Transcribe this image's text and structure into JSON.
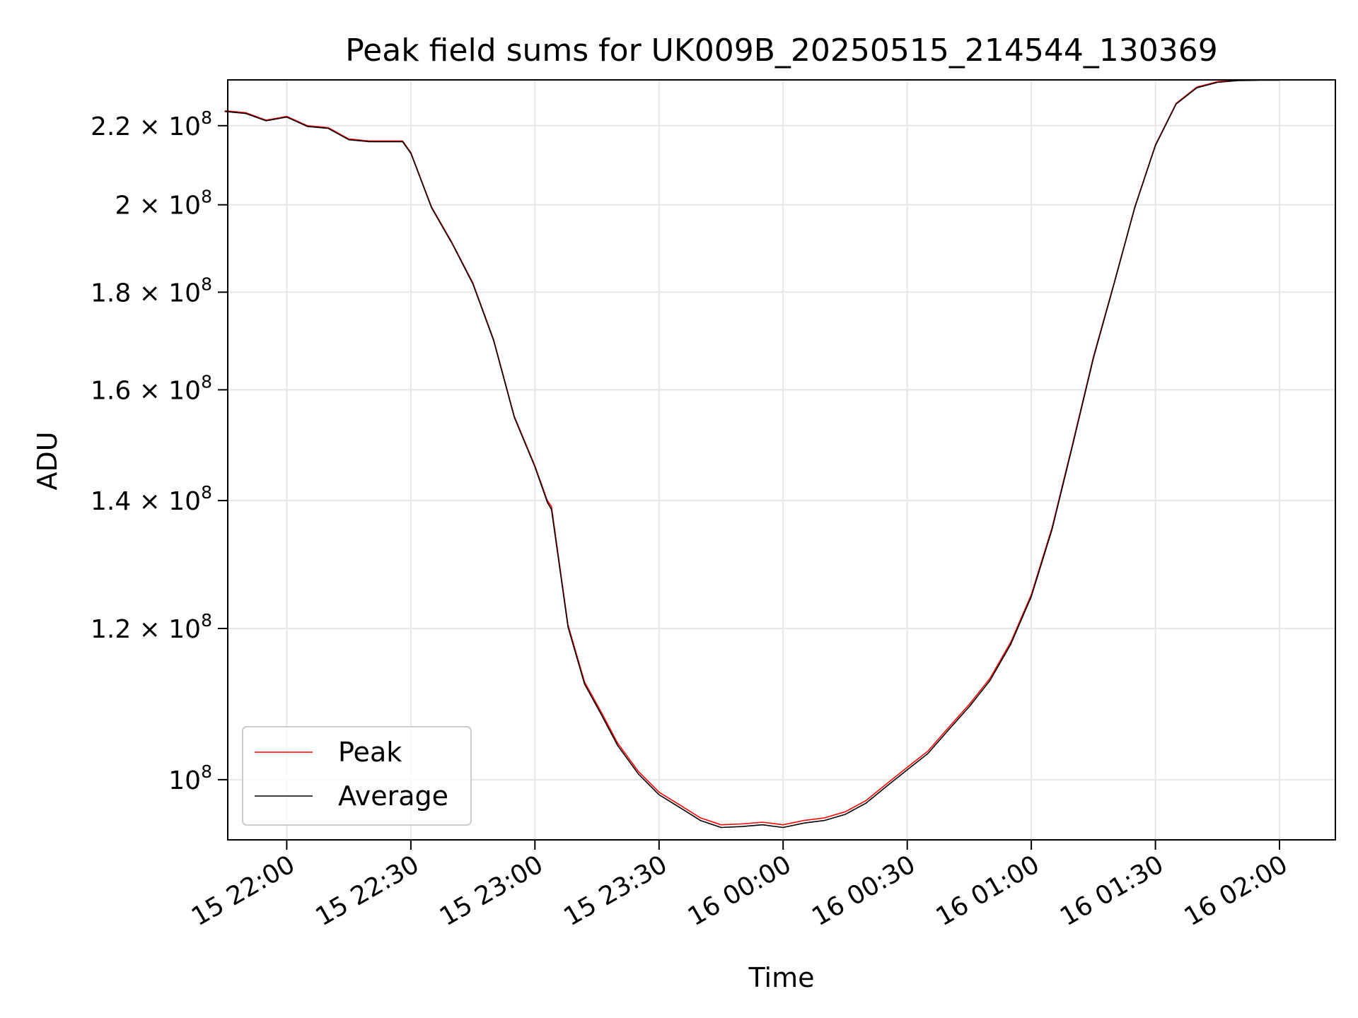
{
  "chart_data": {
    "type": "line",
    "title": "Peak field sums for UK009B_20250515_214544_130369",
    "xlabel": "Time",
    "ylabel": "ADU",
    "yscale": "log",
    "grid": true,
    "legend_placement": "lower-left",
    "xlim": [
      "2025-05-15 21:45:44",
      "2025-05-16 02:13:30"
    ],
    "ylim": [
      93000000,
      232500000
    ],
    "x_ticks": [
      {
        "time": "2025-05-15 22:00",
        "label": "15 22:00"
      },
      {
        "time": "2025-05-15 22:30",
        "label": "15 22:30"
      },
      {
        "time": "2025-05-15 23:00",
        "label": "15 23:00"
      },
      {
        "time": "2025-05-15 23:30",
        "label": "15 23:30"
      },
      {
        "time": "2025-05-16 00:00",
        "label": "16 00:00"
      },
      {
        "time": "2025-05-16 00:30",
        "label": "16 00:30"
      },
      {
        "time": "2025-05-16 01:00",
        "label": "16 01:00"
      },
      {
        "time": "2025-05-16 01:30",
        "label": "16 01:30"
      },
      {
        "time": "2025-05-16 02:00",
        "label": "16 02:00"
      }
    ],
    "y_ticks": [
      {
        "value": 100000000,
        "mantissa": "",
        "exp": "8"
      },
      {
        "value": 120000000,
        "mantissa": "1.2 × ",
        "exp": "8"
      },
      {
        "value": 140000000,
        "mantissa": "1.4 × ",
        "exp": "8"
      },
      {
        "value": 160000000,
        "mantissa": "1.6 × ",
        "exp": "8"
      },
      {
        "value": 180000000,
        "mantissa": "1.8 × ",
        "exp": "8"
      },
      {
        "value": 200000000,
        "mantissa": "2 × ",
        "exp": "8"
      },
      {
        "value": 220000000,
        "mantissa": "2.2 × ",
        "exp": "8"
      }
    ],
    "y_tick_base": "10",
    "series": [
      {
        "name": "Peak",
        "color": "#ff0000",
        "x": [
          "2025-05-15 21:45",
          "2025-05-15 21:50",
          "2025-05-15 21:55",
          "2025-05-15 22:00",
          "2025-05-15 22:05",
          "2025-05-15 22:10",
          "2025-05-15 22:15",
          "2025-05-15 22:20",
          "2025-05-15 22:25",
          "2025-05-15 22:28",
          "2025-05-15 22:30",
          "2025-05-15 22:35",
          "2025-05-15 22:40",
          "2025-05-15 22:45",
          "2025-05-15 22:50",
          "2025-05-15 22:55",
          "2025-05-15 23:00",
          "2025-05-15 23:03",
          "2025-05-15 23:04",
          "2025-05-15 23:08",
          "2025-05-15 23:12",
          "2025-05-15 23:16",
          "2025-05-15 23:20",
          "2025-05-15 23:25",
          "2025-05-15 23:30",
          "2025-05-15 23:35",
          "2025-05-15 23:40",
          "2025-05-15 23:45",
          "2025-05-15 23:50",
          "2025-05-15 23:55",
          "2025-05-16 00:00",
          "2025-05-16 00:05",
          "2025-05-16 00:10",
          "2025-05-16 00:15",
          "2025-05-16 00:20",
          "2025-05-16 00:25",
          "2025-05-16 00:30",
          "2025-05-16 00:35",
          "2025-05-16 00:40",
          "2025-05-16 00:45",
          "2025-05-16 00:50",
          "2025-05-16 00:55",
          "2025-05-16 01:00",
          "2025-05-16 01:05",
          "2025-05-16 01:10",
          "2025-05-16 01:15",
          "2025-05-16 01:20",
          "2025-05-16 01:25",
          "2025-05-16 01:30",
          "2025-05-16 01:35",
          "2025-05-16 01:40",
          "2025-05-16 01:45",
          "2025-05-16 01:50",
          "2025-05-16 01:55",
          "2025-05-16 02:00"
        ],
        "values": [
          224000000,
          223500000,
          221500000,
          222500000,
          220000000,
          219500000,
          216500000,
          216000000,
          216000000,
          216000000,
          213000000,
          199500000,
          191000000,
          182000000,
          170000000,
          155000000,
          146000000,
          140000000,
          139000000,
          120500000,
          112500000,
          108500000,
          104500000,
          101000000,
          98500000,
          97000000,
          95500000,
          94700000,
          94800000,
          95000000,
          94700000,
          95200000,
          95500000,
          96200000,
          97500000,
          99500000,
          101500000,
          103500000,
          106500000,
          109500000,
          113000000,
          118000000,
          125000000,
          135500000,
          150000000,
          166500000,
          182000000,
          199500000,
          215000000,
          226000000,
          230500000,
          232000000,
          232500000,
          232500000,
          232500000
        ]
      },
      {
        "name": "Average",
        "color": "#000000",
        "x": [
          "2025-05-15 21:45",
          "2025-05-15 21:50",
          "2025-05-15 21:55",
          "2025-05-15 22:00",
          "2025-05-15 22:05",
          "2025-05-15 22:10",
          "2025-05-15 22:15",
          "2025-05-15 22:20",
          "2025-05-15 22:25",
          "2025-05-15 22:28",
          "2025-05-15 22:30",
          "2025-05-15 22:35",
          "2025-05-15 22:40",
          "2025-05-15 22:45",
          "2025-05-15 22:50",
          "2025-05-15 22:55",
          "2025-05-15 23:00",
          "2025-05-15 23:03",
          "2025-05-15 23:04",
          "2025-05-15 23:08",
          "2025-05-15 23:12",
          "2025-05-15 23:16",
          "2025-05-15 23:20",
          "2025-05-15 23:25",
          "2025-05-15 23:30",
          "2025-05-15 23:35",
          "2025-05-15 23:40",
          "2025-05-15 23:45",
          "2025-05-15 23:50",
          "2025-05-15 23:55",
          "2025-05-16 00:00",
          "2025-05-16 00:05",
          "2025-05-16 00:10",
          "2025-05-16 00:15",
          "2025-05-16 00:20",
          "2025-05-16 00:25",
          "2025-05-16 00:30",
          "2025-05-16 00:35",
          "2025-05-16 00:40",
          "2025-05-16 00:45",
          "2025-05-16 00:50",
          "2025-05-16 00:55",
          "2025-05-16 01:00",
          "2025-05-16 01:05",
          "2025-05-16 01:10",
          "2025-05-16 01:15",
          "2025-05-16 01:20",
          "2025-05-16 01:25",
          "2025-05-16 01:30",
          "2025-05-16 01:35",
          "2025-05-16 01:40",
          "2025-05-16 01:45",
          "2025-05-16 01:50",
          "2025-05-16 01:55",
          "2025-05-16 02:00"
        ],
        "values": [
          223800000,
          223300000,
          221300000,
          222300000,
          219800000,
          219300000,
          216300000,
          215800000,
          215800000,
          215800000,
          212800000,
          199300000,
          190800000,
          181800000,
          169800000,
          154800000,
          145800000,
          139700000,
          138500000,
          120200000,
          112200000,
          108200000,
          104200000,
          100700000,
          98200000,
          96700000,
          95200000,
          94400000,
          94500000,
          94700000,
          94400000,
          94900000,
          95200000,
          95900000,
          97200000,
          99200000,
          101200000,
          103200000,
          106200000,
          109200000,
          112700000,
          117700000,
          124700000,
          135200000,
          149700000,
          166200000,
          181800000,
          199300000,
          214800000,
          225800000,
          230300000,
          231800000,
          232300000,
          232400000,
          232400000
        ]
      }
    ]
  }
}
